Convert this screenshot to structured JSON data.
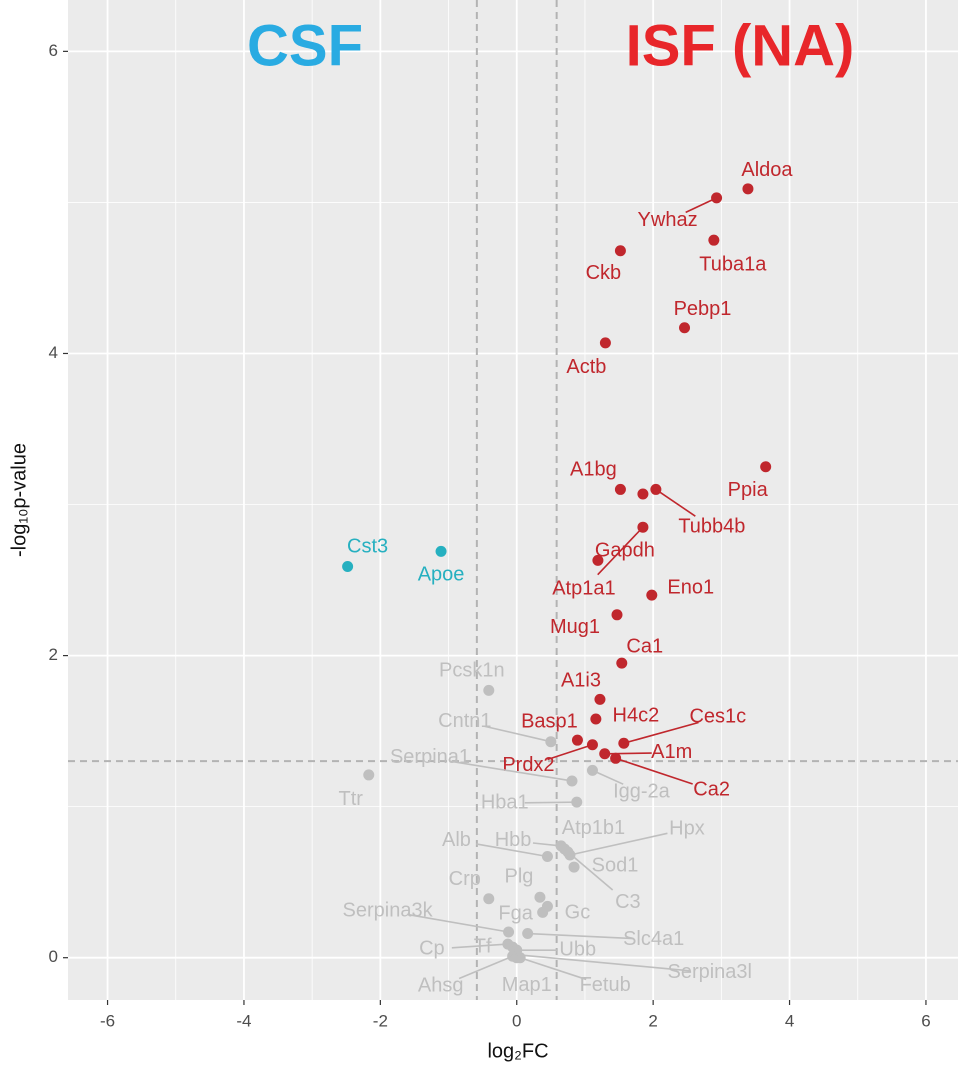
{
  "chart_data": {
    "type": "scatter",
    "annotations": [
      {
        "text": "CSF",
        "color": "#29abe2"
      },
      {
        "text": "ISF (NA)",
        "color": "#e8262a"
      }
    ],
    "xlabel": "log₂FC",
    "ylabel": "-log₁₀p-value",
    "xlim": [
      -6.58,
      6.47
    ],
    "ylim": [
      -0.28,
      6.34
    ],
    "xticks": [
      -6,
      -4,
      -2,
      0,
      2,
      4,
      6
    ],
    "yticks": [
      0,
      2,
      4,
      6
    ],
    "xminor": [
      -5,
      -3,
      -1,
      1,
      3,
      5
    ],
    "yminor": [
      1,
      3,
      5
    ],
    "grid": true,
    "vlines": [
      -0.585,
      0.585
    ],
    "hlines": [
      1.301
    ],
    "series": [
      {
        "color": "#c0272d",
        "x": [
          3.39,
          2.93,
          2.89,
          1.52,
          2.46,
          1.3,
          3.65,
          1.52,
          1.85,
          2.04,
          1.85,
          1.19,
          1.98,
          1.47,
          1.54,
          1.22,
          1.16,
          0.89,
          1.11,
          1.57,
          1.29,
          1.45
        ],
        "y": [
          5.09,
          5.03,
          4.75,
          4.68,
          4.17,
          4.07,
          3.25,
          3.1,
          3.07,
          3.1,
          2.85,
          2.63,
          2.4,
          2.27,
          1.95,
          1.71,
          1.58,
          1.44,
          1.41,
          1.42,
          1.35,
          1.32
        ],
        "labels": [
          "Aldoa",
          "Ywhaz",
          "Tuba1a",
          "Ckb",
          "Pebp1",
          "Actb",
          "Ppia",
          "A1bg",
          null,
          "Tubb4b",
          "Atp1a1",
          "Gapdh",
          "Eno1",
          "Mug1",
          "Ca1",
          "A1i3",
          "H4c2",
          "Basp1",
          "Prdx2",
          "Ces1c",
          "A1m",
          "Ca2"
        ]
      },
      {
        "color": "#26b0c0",
        "x": [
          -2.48,
          -1.11
        ],
        "y": [
          2.59,
          2.69
        ],
        "labels": [
          "Cst3",
          "Apoe"
        ]
      },
      {
        "color": "#bfbfbf",
        "x": [
          -0.41,
          0.5,
          0.81,
          -2.17,
          1.11,
          0.88,
          0.7,
          0.78,
          0.65,
          0.45,
          0.84,
          0.75,
          -0.41,
          0.34,
          0.45,
          0.38,
          -0.12,
          0.16,
          -0.13,
          -0.06,
          0.0,
          0.0,
          -0.06,
          0.0,
          0.05
        ],
        "y": [
          1.77,
          1.43,
          1.17,
          1.21,
          1.24,
          1.03,
          0.72,
          0.68,
          0.74,
          0.67,
          0.6,
          0.7,
          0.39,
          0.4,
          0.34,
          0.3,
          0.17,
          0.16,
          0.09,
          0.07,
          0.05,
          0.02,
          0.01,
          0.0,
          0.0
        ],
        "labels": [
          "Pcsk1n",
          "Cntn1",
          "Serpina1",
          "Ttr",
          "Igg-2a",
          "Hba1",
          "Atp1b1",
          "Hpx",
          "Hbb",
          "Alb",
          "Sod1",
          "C3",
          "Crp",
          "Plg",
          "Gc",
          "Fga",
          "Serpina3k",
          "Slc4a1",
          "Cp",
          "Tf",
          "Ubb",
          "Serpina3l",
          "Ahsg",
          "Map1",
          "Fetub"
        ]
      }
    ]
  }
}
